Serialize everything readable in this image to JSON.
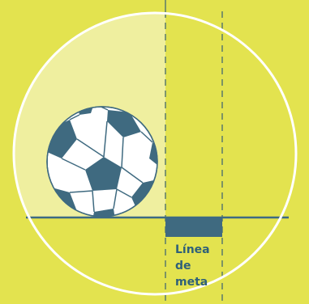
{
  "goal_line": {
    "label_lines": [
      "Línea",
      "de",
      "meta"
    ]
  },
  "colors": {
    "background": "#e3e34f",
    "circle_outline": "#ffffff",
    "light_region": "#efef9f",
    "line": "#3d6a84",
    "dashed": "#5a7a6a",
    "ball_white": "#ffffff",
    "ball_patch": "#3f6a80",
    "label_text": "#2f6079"
  }
}
